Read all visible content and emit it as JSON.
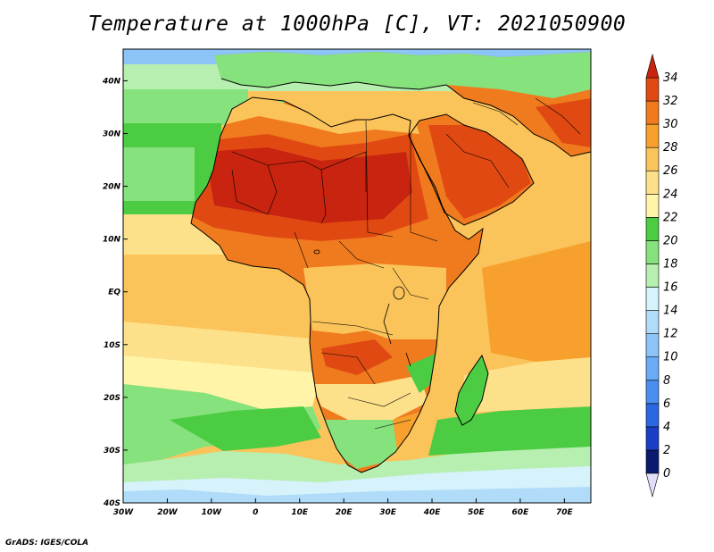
{
  "title": "Temperature at 1000hPa [C], VT: 2021050900",
  "credit": "GrADS: IGES/COLA",
  "map": {
    "lon_range": [
      -30,
      76
    ],
    "lat_range": [
      -40,
      46
    ],
    "lon_ticks": [
      {
        "value": -30,
        "label": "30W"
      },
      {
        "value": -20,
        "label": "20W"
      },
      {
        "value": -10,
        "label": "10W"
      },
      {
        "value": 0,
        "label": "0"
      },
      {
        "value": 10,
        "label": "10E"
      },
      {
        "value": 20,
        "label": "20E"
      },
      {
        "value": 30,
        "label": "30E"
      },
      {
        "value": 40,
        "label": "40E"
      },
      {
        "value": 50,
        "label": "50E"
      },
      {
        "value": 60,
        "label": "60E"
      },
      {
        "value": 70,
        "label": "70E"
      }
    ],
    "lat_ticks": [
      {
        "value": 40,
        "label": "40N"
      },
      {
        "value": 30,
        "label": "30N"
      },
      {
        "value": 20,
        "label": "20N"
      },
      {
        "value": 10,
        "label": "10N"
      },
      {
        "value": 0,
        "label": "EQ"
      },
      {
        "value": -10,
        "label": "10S"
      },
      {
        "value": -20,
        "label": "20S"
      },
      {
        "value": -30,
        "label": "30S"
      },
      {
        "value": -40,
        "label": "40S"
      }
    ]
  },
  "colorbar": {
    "labels": [
      "0",
      "2",
      "4",
      "6",
      "8",
      "10",
      "12",
      "14",
      "16",
      "18",
      "20",
      "22",
      "24",
      "26",
      "28",
      "30",
      "32",
      "34"
    ],
    "colors": [
      "#0a1a6e",
      "#1a3fc4",
      "#2a67e0",
      "#4a8ff0",
      "#6aabf5",
      "#8cc4f8",
      "#b0dcfa",
      "#d6f2fb",
      "#b6efb0",
      "#86e27c",
      "#4bcc42",
      "#fff4a8",
      "#fde18a",
      "#fbc45a",
      "#f7a02e",
      "#f07a1e",
      "#e04a12"
    ],
    "over_color": "#c82410",
    "under_color": "#e2defa"
  }
}
